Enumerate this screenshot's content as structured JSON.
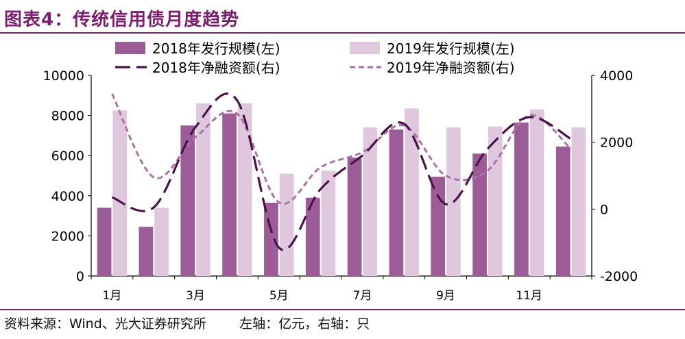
{
  "figure": {
    "title": "图表4：传统信用债月度趋势",
    "source_note": "资料来源：Wind、光大证券研究所",
    "axis_note": "左轴：亿元，右轴：只"
  },
  "colors": {
    "title_purple": "#7a1f6e",
    "bar_2018": "#9b5c98",
    "bar_2019": "#dfc8de",
    "line_2018": "#4a1248",
    "line_2019": "#a873a5"
  },
  "chart_data": {
    "type": "bar",
    "categories": [
      "1月",
      "2月",
      "3月",
      "4月",
      "5月",
      "6月",
      "7月",
      "8月",
      "9月",
      "10月",
      "11月",
      "12月"
    ],
    "x_tick_labels": [
      "1月",
      "",
      "3月",
      "",
      "5月",
      "",
      "7月",
      "",
      "9月",
      "",
      "11月",
      ""
    ],
    "series": [
      {
        "name": "2018年发行规模(左)",
        "kind": "bar",
        "axis": "left",
        "values": [
          3400,
          2450,
          7500,
          8100,
          3650,
          3900,
          5900,
          7300,
          4950,
          6100,
          7650,
          6450
        ]
      },
      {
        "name": "2019年发行规模(左)",
        "kind": "bar",
        "axis": "left",
        "values": [
          8250,
          3400,
          8600,
          8600,
          5100,
          5250,
          7400,
          8350,
          7400,
          7450,
          8300,
          7400
        ]
      },
      {
        "name": "2018年净融资额(右)",
        "kind": "line",
        "style": "long-dash",
        "axis": "right",
        "values": [
          350,
          50,
          2450,
          3250,
          -1150,
          600,
          1600,
          2550,
          150,
          1800,
          2750,
          2100
        ]
      },
      {
        "name": "2019年净融资额(右)",
        "kind": "line",
        "style": "short-dash",
        "axis": "right",
        "values": [
          3450,
          950,
          2150,
          2850,
          200,
          1250,
          1700,
          2500,
          1000,
          1150,
          2800,
          1800
        ]
      }
    ],
    "left_axis": {
      "ylim": [
        0,
        10000
      ],
      "ticks": [
        "0",
        "2000",
        "4000",
        "6000",
        "8000",
        "10000"
      ]
    },
    "right_axis": {
      "ylim": [
        -2000,
        4000
      ],
      "ticks": [
        "-2000",
        "0",
        "2000",
        "4000"
      ]
    },
    "legend_position": "top",
    "grid": false
  }
}
